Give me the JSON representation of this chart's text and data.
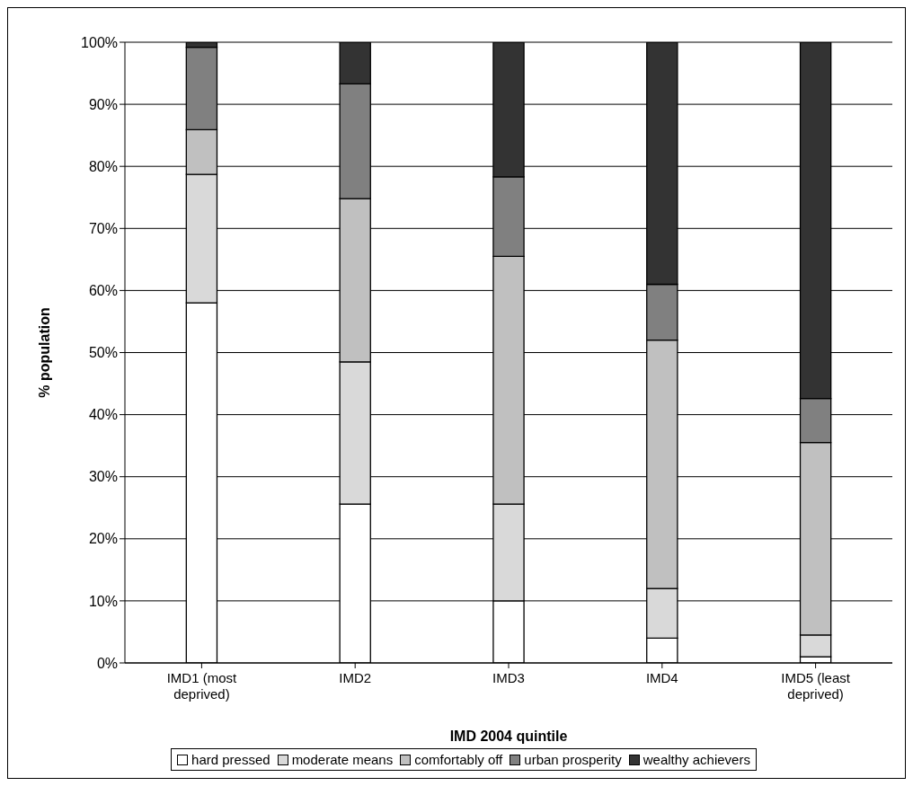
{
  "chart_data": {
    "type": "bar",
    "stacked": true,
    "xlabel": "IMD 2004 quintile",
    "ylabel": "% population",
    "categories": [
      "IMD1 (most deprived)",
      "IMD2",
      "IMD3",
      "IMD4",
      "IMD5 (least deprived)"
    ],
    "series": [
      {
        "name": "hard pressed",
        "color": "#ffffff",
        "values": [
          58,
          25.6,
          10,
          4,
          1
        ]
      },
      {
        "name": "moderate means",
        "color": "#d9d9d9",
        "values": [
          20.7,
          22.9,
          15.6,
          8,
          3.5
        ]
      },
      {
        "name": "comfortably off",
        "color": "#c0c0c0",
        "values": [
          7.2,
          26.3,
          39.9,
          40,
          31
        ]
      },
      {
        "name": "urban prosperity",
        "color": "#808080",
        "values": [
          13.3,
          18.5,
          12.8,
          9,
          7.1
        ]
      },
      {
        "name": "wealthy achievers",
        "color": "#333333",
        "values": [
          0.8,
          6.7,
          21.7,
          39,
          57.4
        ]
      }
    ],
    "ylim": [
      0,
      100
    ],
    "yticks": [
      {
        "value": 0,
        "label": "0%"
      },
      {
        "value": 10,
        "label": "10%"
      },
      {
        "value": 20,
        "label": "20%"
      },
      {
        "value": 30,
        "label": "30%"
      },
      {
        "value": 40,
        "label": "40%"
      },
      {
        "value": 50,
        "label": "50%"
      },
      {
        "value": 60,
        "label": "60%"
      },
      {
        "value": 70,
        "label": "70%"
      },
      {
        "value": 80,
        "label": "80%"
      },
      {
        "value": 90,
        "label": "90%"
      },
      {
        "value": 100,
        "label": "100%"
      }
    ],
    "grid": "y",
    "legend": "bottom"
  }
}
